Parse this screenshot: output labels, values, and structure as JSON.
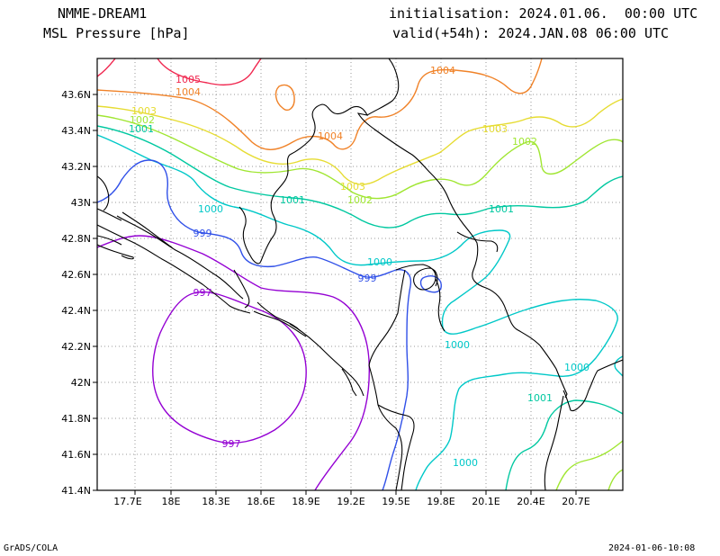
{
  "header": {
    "model": "NMME-DREAM1",
    "variable": "MSL Pressure [hPa]",
    "initialisation": "initialisation: 2024.01.06.  00:00 UTC",
    "valid": "valid(+54h): 2024.JAN.08 06:00 UTC"
  },
  "footer": {
    "left": "GrADS/COLA",
    "right": "2024-01-06-10:08"
  },
  "map": {
    "lon_ticks": [
      "17.7E",
      "18E",
      "18.3E",
      "18.6E",
      "18.9E",
      "19.2E",
      "19.5E",
      "19.8E",
      "20.1E",
      "20.4E",
      "20.7E"
    ],
    "lat_ticks": [
      "41.4N",
      "41.6N",
      "41.8N",
      "42N",
      "42.2N",
      "42.4N",
      "42.6N",
      "42.8N",
      "43N",
      "43.2N",
      "43.4N",
      "43.6N"
    ],
    "contour_labels": [
      "1005",
      "1004",
      "1004",
      "1004",
      "1003",
      "1003",
      "1003",
      "1002",
      "1002",
      "1002",
      "1001",
      "1001",
      "1001",
      "1001",
      "1000",
      "1000",
      "1000",
      "1000",
      "1000",
      "999",
      "999",
      "997",
      "997"
    ],
    "colors": {
      "c997": "#9400d3",
      "c999": "#3050e8",
      "c1000": "#00c8c8",
      "c1001": "#00c8a0",
      "c1002": "#a0e632",
      "c1003": "#e6dc32",
      "c1004": "#f08228",
      "c1005": "#f02850",
      "coast": "#000000",
      "grid": "#9a9a9a"
    }
  }
}
